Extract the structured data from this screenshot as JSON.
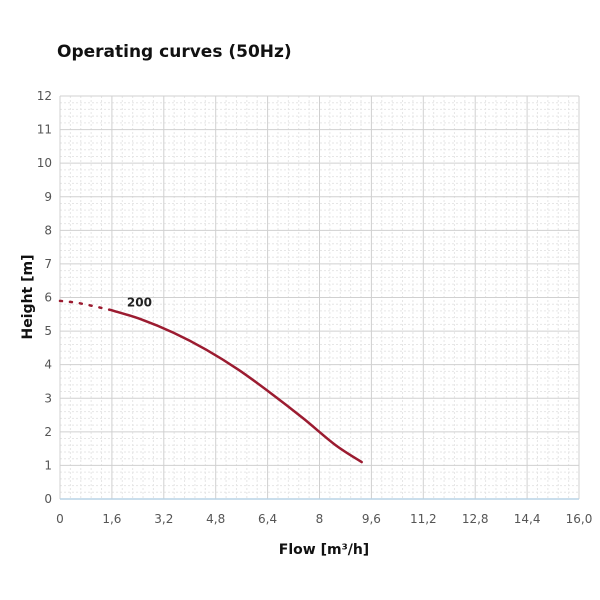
{
  "chart_data": {
    "type": "line",
    "title": "Operating curves (50Hz)",
    "xlabel": "Flow [m³/h]",
    "ylabel": "Height [m]",
    "xlim": [
      0,
      16
    ],
    "ylim": [
      0,
      12
    ],
    "x_ticks": [
      "0",
      "1,6",
      "3,2",
      "4,8",
      "6,4",
      "8",
      "9,6",
      "11,2",
      "12,8",
      "14,4",
      "16,0"
    ],
    "y_ticks": [
      "0",
      "1",
      "2",
      "3",
      "4",
      "5",
      "6",
      "7",
      "8",
      "9",
      "10",
      "11",
      "12"
    ],
    "grid": true,
    "series": [
      {
        "name": "200",
        "color": "#9b1b30",
        "dotted_x": [
          0,
          0.5,
          1.0,
          1.6
        ],
        "dotted_y": [
          5.9,
          5.85,
          5.75,
          5.62
        ],
        "x": [
          1.6,
          2.5,
          3.5,
          4.5,
          5.5,
          6.5,
          7.5,
          8.5,
          9.3
        ],
        "y": [
          5.62,
          5.35,
          4.95,
          4.45,
          3.85,
          3.15,
          2.4,
          1.6,
          1.1
        ]
      }
    ]
  }
}
